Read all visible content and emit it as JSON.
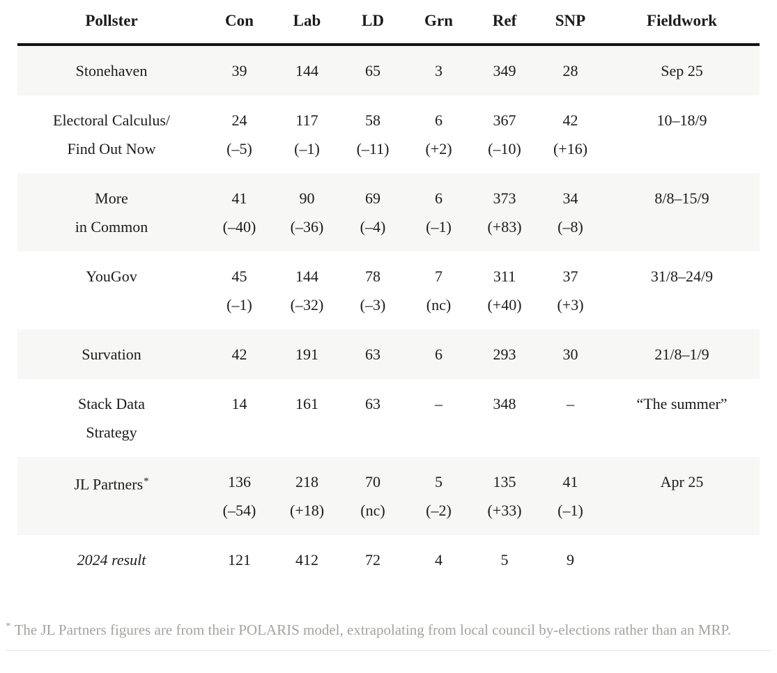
{
  "table": {
    "columns": [
      "Pollster",
      "Con",
      "Lab",
      "LD",
      "Grn",
      "Ref",
      "SNP",
      "Fieldwork"
    ],
    "rows": [
      {
        "pollster_lines": [
          "Stonehaven"
        ],
        "pollster_suffix": "",
        "italic": false,
        "shaded": true,
        "cells": [
          {
            "value": "39",
            "change": ""
          },
          {
            "value": "144",
            "change": ""
          },
          {
            "value": "65",
            "change": ""
          },
          {
            "value": "3",
            "change": ""
          },
          {
            "value": "349",
            "change": ""
          },
          {
            "value": "28",
            "change": ""
          }
        ],
        "fieldwork": "Sep 25"
      },
      {
        "pollster_lines": [
          "Electoral Calculus/",
          "Find Out Now"
        ],
        "pollster_suffix": "",
        "italic": false,
        "shaded": false,
        "cells": [
          {
            "value": "24",
            "change": "(–5)"
          },
          {
            "value": "117",
            "change": "(–1)"
          },
          {
            "value": "58",
            "change": "(–11)"
          },
          {
            "value": "6",
            "change": "(+2)"
          },
          {
            "value": "367",
            "change": "(–10)"
          },
          {
            "value": "42",
            "change": "(+16)"
          }
        ],
        "fieldwork": "10–18/9"
      },
      {
        "pollster_lines": [
          "More",
          "in Common"
        ],
        "pollster_suffix": "",
        "italic": false,
        "shaded": true,
        "cells": [
          {
            "value": "41",
            "change": "(–40)"
          },
          {
            "value": "90",
            "change": "(–36)"
          },
          {
            "value": "69",
            "change": "(–4)"
          },
          {
            "value": "6",
            "change": "(–1)"
          },
          {
            "value": "373",
            "change": "(+83)"
          },
          {
            "value": "34",
            "change": "(–8)"
          }
        ],
        "fieldwork": "8/8–15/9"
      },
      {
        "pollster_lines": [
          "YouGov"
        ],
        "pollster_suffix": "",
        "italic": false,
        "shaded": false,
        "cells": [
          {
            "value": "45",
            "change": "(–1)"
          },
          {
            "value": "144",
            "change": "(–32)"
          },
          {
            "value": "78",
            "change": "(–3)"
          },
          {
            "value": "7",
            "change": "(nc)"
          },
          {
            "value": "311",
            "change": "(+40)"
          },
          {
            "value": "37",
            "change": "(+3)"
          }
        ],
        "fieldwork": "31/8–24/9"
      },
      {
        "pollster_lines": [
          "Survation"
        ],
        "pollster_suffix": "",
        "italic": false,
        "shaded": true,
        "cells": [
          {
            "value": "42",
            "change": ""
          },
          {
            "value": "191",
            "change": ""
          },
          {
            "value": "63",
            "change": ""
          },
          {
            "value": "6",
            "change": ""
          },
          {
            "value": "293",
            "change": ""
          },
          {
            "value": "30",
            "change": ""
          }
        ],
        "fieldwork": "21/8–1/9"
      },
      {
        "pollster_lines": [
          "Stack Data",
          "Strategy"
        ],
        "pollster_suffix": "",
        "italic": false,
        "shaded": false,
        "cells": [
          {
            "value": "14",
            "change": ""
          },
          {
            "value": "161",
            "change": ""
          },
          {
            "value": "63",
            "change": ""
          },
          {
            "value": "–",
            "change": ""
          },
          {
            "value": "348",
            "change": ""
          },
          {
            "value": "–",
            "change": ""
          }
        ],
        "fieldwork": "“The summer”"
      },
      {
        "pollster_lines": [
          "JL Partners"
        ],
        "pollster_suffix": "*",
        "italic": false,
        "shaded": true,
        "cells": [
          {
            "value": "136",
            "change": "(–54)"
          },
          {
            "value": "218",
            "change": "(+18)"
          },
          {
            "value": "70",
            "change": "(nc)"
          },
          {
            "value": "5",
            "change": "(–2)"
          },
          {
            "value": "135",
            "change": "(+33)"
          },
          {
            "value": "41",
            "change": "(–1)"
          }
        ],
        "fieldwork": "Apr 25"
      },
      {
        "pollster_lines": [
          "2024 result"
        ],
        "pollster_suffix": "",
        "italic": true,
        "shaded": false,
        "cells": [
          {
            "value": "121",
            "change": ""
          },
          {
            "value": "412",
            "change": ""
          },
          {
            "value": "72",
            "change": ""
          },
          {
            "value": "4",
            "change": ""
          },
          {
            "value": "5",
            "change": ""
          },
          {
            "value": "9",
            "change": ""
          }
        ],
        "fieldwork": ""
      }
    ]
  },
  "footnote": {
    "marker": "*",
    "text": "The JL Partners figures are from their POLARIS model, extrapolating from local council by-elections rather than an MRP."
  },
  "colors": {
    "text": "#1b1b1b",
    "row_stripe": "#f7f7f6",
    "header_rule": "#121212",
    "footnote_text": "#a3a49e",
    "bottom_rule": "#e5e5e1"
  },
  "chart_data": {
    "type": "table",
    "title": "",
    "columns": [
      "Pollster",
      "Con",
      "Lab",
      "LD",
      "Grn",
      "Ref",
      "SNP",
      "Fieldwork"
    ],
    "rows": [
      [
        "Stonehaven",
        "39",
        "144",
        "65",
        "3",
        "349",
        "28",
        "Sep 25"
      ],
      [
        "Electoral Calculus/ Find Out Now",
        "24 (–5)",
        "117 (–1)",
        "58 (–11)",
        "6 (+2)",
        "367 (–10)",
        "42 (+16)",
        "10–18/9"
      ],
      [
        "More in Common",
        "41 (–40)",
        "90 (–36)",
        "69 (–4)",
        "6 (–1)",
        "373 (+83)",
        "34 (–8)",
        "8/8–15/9"
      ],
      [
        "YouGov",
        "45 (–1)",
        "144 (–32)",
        "78 (–3)",
        "7 (nc)",
        "311 (+40)",
        "37 (+3)",
        "31/8–24/9"
      ],
      [
        "Survation",
        "42",
        "191",
        "63",
        "6",
        "293",
        "30",
        "21/8–1/9"
      ],
      [
        "Stack Data Strategy",
        "14",
        "161",
        "63",
        "–",
        "348",
        "–",
        "“The summer”"
      ],
      [
        "JL Partners*",
        "136 (–54)",
        "218 (+18)",
        "70 (nc)",
        "5 (–2)",
        "135 (+33)",
        "41 (–1)",
        "Apr 25"
      ],
      [
        "2024 result",
        "121",
        "412",
        "72",
        "4",
        "5",
        "9",
        ""
      ]
    ],
    "footnote": "* The JL Partners figures are from their POLARIS model, extrapolating from local council by-elections rather than an MRP."
  }
}
